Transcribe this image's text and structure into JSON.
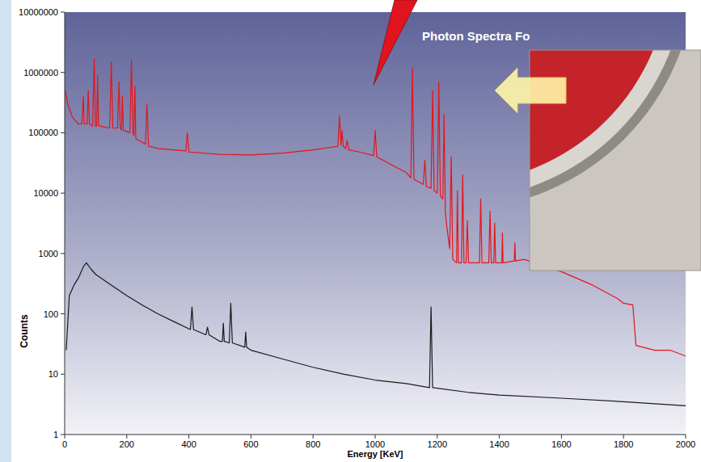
{
  "chart_data": {
    "type": "line",
    "title": "Photon Spectra Fo",
    "x_label": "Energy [KeV]",
    "y_label": "Counts",
    "log": "y",
    "grid": false,
    "xlim": [
      0,
      2000
    ],
    "xticks": [
      0,
      200,
      400,
      600,
      800,
      1000,
      1200,
      1400,
      1600,
      1800,
      2000
    ],
    "ylim": [
      1,
      10000000
    ],
    "yticks": [
      1,
      10,
      100,
      1000,
      10000,
      100000,
      1000000,
      10000000
    ],
    "series": [
      {
        "color": "#e8141c",
        "x": [
          2,
          10,
          25,
          45,
          55,
          60,
          63,
          72,
          76,
          80,
          90,
          95,
          99,
          103,
          106,
          109,
          145,
          150,
          155,
          170,
          175,
          179,
          183,
          186,
          189,
          210,
          215,
          220,
          223,
          226,
          229,
          260,
          265,
          270,
          300,
          390,
          395,
          400,
          500,
          600,
          700,
          800,
          880,
          885,
          890,
          893,
          897,
          905,
          910,
          915,
          950,
          995,
          1000,
          1005,
          1050,
          1100,
          1115,
          1120,
          1125,
          1155,
          1160,
          1165,
          1180,
          1185,
          1190,
          1200,
          1205,
          1210,
          1218,
          1222,
          1226,
          1230,
          1240,
          1245,
          1250,
          1262,
          1265,
          1268,
          1278,
          1282,
          1286,
          1293,
          1297,
          1301,
          1336,
          1340,
          1344,
          1366,
          1370,
          1374,
          1382,
          1385,
          1388,
          1408,
          1410,
          1412,
          1448,
          1450,
          1452,
          1480,
          1600,
          1700,
          1780,
          1800,
          1830,
          1840,
          1900,
          1950,
          2000
        ],
        "values": [
          500000,
          300000,
          180000,
          140000,
          140000,
          400000,
          140000,
          140000,
          500000,
          140000,
          130000,
          1700000,
          130000,
          130000,
          900000,
          130000,
          120000,
          1500000,
          120000,
          120000,
          700000,
          120000,
          110000,
          400000,
          110000,
          100000,
          1600000,
          100000,
          90000,
          600000,
          80000,
          65000,
          300000,
          60000,
          55000,
          50000,
          100000,
          48000,
          44000,
          43000,
          46000,
          52000,
          60000,
          190000,
          62000,
          110000,
          60000,
          55000,
          75000,
          52000,
          48000,
          42000,
          110000,
          40000,
          30000,
          22000,
          18000,
          1200000,
          17000,
          14000,
          35000,
          13000,
          12000,
          500000,
          11000,
          10000,
          700000,
          9000,
          8000,
          200000,
          5000,
          3000,
          1200,
          40000,
          800,
          700,
          11000,
          700,
          700,
          20000,
          700,
          700,
          3500,
          700,
          700,
          8000,
          700,
          700,
          5000,
          700,
          700,
          3200,
          700,
          700,
          2200,
          700,
          750,
          1500,
          750,
          800,
          500,
          300,
          180,
          150,
          140,
          30,
          25,
          25,
          20
        ]
      },
      {
        "color": "#1a1a1a",
        "x": [
          5,
          15,
          30,
          45,
          60,
          70,
          85,
          100,
          150,
          200,
          250,
          300,
          350,
          405,
          410,
          415,
          455,
          460,
          465,
          500,
          508,
          511,
          514,
          530,
          535,
          540,
          580,
          583,
          586,
          600,
          700,
          800,
          900,
          1000,
          1100,
          1175,
          1180,
          1185,
          1300,
          1400,
          1600,
          1800,
          2000
        ],
        "values": [
          25,
          200,
          300,
          400,
          600,
          700,
          550,
          450,
          300,
          200,
          140,
          100,
          75,
          55,
          130,
          55,
          45,
          60,
          45,
          35,
          35,
          70,
          35,
          33,
          150,
          33,
          28,
          50,
          28,
          25,
          18,
          13,
          10,
          8,
          7,
          6,
          130,
          6,
          5,
          4.5,
          4,
          3.5,
          3
        ]
      }
    ]
  }
}
